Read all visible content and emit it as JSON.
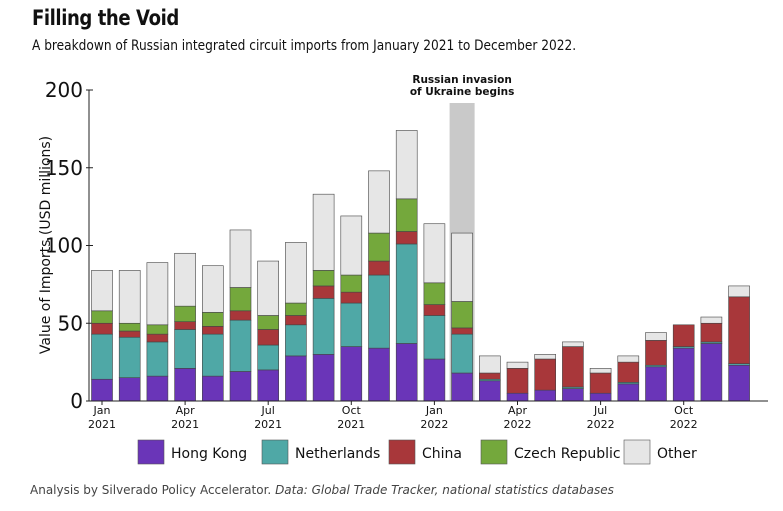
{
  "title": "Filling the Void",
  "subtitle": "A breakdown of Russian integrated circuit imports from January 2021 to December 2022.",
  "footer": {
    "prefix": "Analysis by Silverado Policy Accelerator.",
    "italic": "Data: Global Trade Tracker, national statistics databases"
  },
  "colors": {
    "Hong Kong": "#6a35b8",
    "Netherlands": "#4fa8a6",
    "China": "#a8373a",
    "Czech Republic": "#74a83c",
    "Other": "#e6e6e6",
    "highlight": "#c9c9c9"
  },
  "chart_data": {
    "type": "bar",
    "stacked": true,
    "ylabel": "Value of Imports (USD millions)",
    "ylim": [
      0,
      200
    ],
    "yticks": [
      0,
      50,
      100,
      150,
      200
    ],
    "categories": [
      "Jan 2021",
      "Feb 2021",
      "Mar 2021",
      "Apr 2021",
      "May 2021",
      "Jun 2021",
      "Jul 2021",
      "Aug 2021",
      "Sep 2021",
      "Oct 2021",
      "Nov 2021",
      "Dec 2021",
      "Jan 2022",
      "Feb 2022",
      "Mar 2022",
      "Apr 2022",
      "May 2022",
      "Jun 2022",
      "Jul 2022",
      "Aug 2022",
      "Sep 2022",
      "Oct 2022",
      "Nov 2022",
      "Dec 2022"
    ],
    "tick_labels": [
      {
        "index": 0,
        "month": "Jan",
        "year": "2021"
      },
      {
        "index": 3,
        "month": "Apr",
        "year": "2021"
      },
      {
        "index": 6,
        "month": "Jul",
        "year": "2021"
      },
      {
        "index": 9,
        "month": "Oct",
        "year": "2021"
      },
      {
        "index": 12,
        "month": "Jan",
        "year": "2022"
      },
      {
        "index": 15,
        "month": "Apr",
        "year": "2022"
      },
      {
        "index": 18,
        "month": "Jul",
        "year": "2022"
      },
      {
        "index": 21,
        "month": "Oct",
        "year": "2022"
      }
    ],
    "series": [
      {
        "name": "Hong Kong",
        "values": [
          14,
          15,
          16,
          21,
          16,
          19,
          20,
          29,
          30,
          35,
          34,
          37,
          27,
          18,
          13,
          5,
          7,
          8,
          5,
          11,
          22,
          34,
          37,
          23
        ]
      },
      {
        "name": "Netherlands",
        "values": [
          29,
          26,
          22,
          25,
          27,
          33,
          16,
          20,
          36,
          28,
          47,
          64,
          28,
          25,
          1,
          0,
          0,
          1,
          0,
          1,
          1,
          1,
          1,
          1
        ]
      },
      {
        "name": "China",
        "values": [
          7,
          4,
          5,
          5,
          5,
          6,
          10,
          6,
          8,
          7,
          9,
          8,
          7,
          4,
          4,
          16,
          20,
          26,
          13,
          13,
          16,
          14,
          12,
          43
        ]
      },
      {
        "name": "Czech Republic",
        "values": [
          8,
          5,
          6,
          10,
          9,
          15,
          9,
          8,
          10,
          11,
          18,
          21,
          14,
          17,
          0,
          0,
          0,
          0,
          0,
          0,
          0,
          0,
          0,
          0
        ]
      },
      {
        "name": "Other",
        "values": [
          26,
          34,
          40,
          34,
          30,
          37,
          35,
          39,
          49,
          38,
          40,
          44,
          38,
          44,
          11,
          4,
          3,
          3,
          3,
          4,
          5,
          0,
          4,
          7
        ]
      }
    ],
    "annotation": {
      "text_lines": [
        "Russian invasion",
        "of Ukraine begins"
      ],
      "category_index": 13
    },
    "legend_position": "bottom"
  }
}
